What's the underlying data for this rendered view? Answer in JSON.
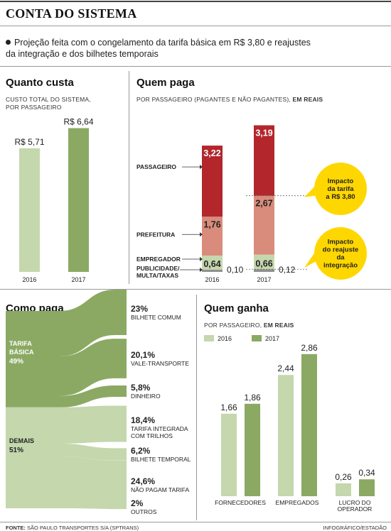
{
  "header": {
    "title": "CONTA DO SISTEMA",
    "subtitle_line1": "Projeção feita com o congelamento da tarifa básica em R$ 3,80 e reajustes",
    "subtitle_line2": "da integração  e dos bilhetes temporais"
  },
  "colors": {
    "y2016": "#c4d7ad",
    "y2017": "#8ba963",
    "passageiro": "#b2262c",
    "prefeitura": "#d98c7c",
    "empregador": "#c4d7ad",
    "publicidade": "#8f8f8f",
    "callout": "#ffd700",
    "sankey_top": "#8ba963",
    "sankey_bottom": "#c4d7ad"
  },
  "quanto_custa": {
    "title": "Quanto custa",
    "label_line1": "CUSTO TOTAL DO SISTEMA,",
    "label_line2": "POR  PASSAGEIRO"
  },
  "quem_paga": {
    "title": "Quem paga",
    "label_main": "POR  PASSAGEIRO (PAGANTES E NÃO PAGANTES),",
    "label_bold": "EM REAIS",
    "row_labels": {
      "passageiro": "PASSAGEIRO",
      "prefeitura": "PREFEITURA",
      "empregador": "EMPREGADOR",
      "publicidade_1": "PUBLICIDADE/",
      "publicidade_2": "MULTA/TAXAS"
    },
    "callout1": [
      "Impacto",
      "da tarifa",
      "a R$ 3,80"
    ],
    "callout2": [
      "Impacto",
      "do reajuste",
      "da",
      "integração"
    ]
  },
  "como_paga": {
    "title": "Como paga",
    "group_top": [
      "TARIFA",
      "BÁSICA",
      "49%"
    ],
    "group_bottom": [
      "DEMAIS",
      "51%"
    ]
  },
  "quem_ganha": {
    "title": "Quem ganha",
    "label_main": "POR  PASSAGEIRO,",
    "label_bold": "EM REAIS"
  },
  "chart_data": [
    {
      "type": "bar",
      "title": "Quanto custa",
      "categories": [
        "2016",
        "2017"
      ],
      "values": [
        5.71,
        6.64
      ],
      "value_labels": [
        "R$ 5,71",
        "R$ 6,64"
      ]
    },
    {
      "type": "bar",
      "stacked": true,
      "title": "Quem paga",
      "categories": [
        "2016",
        "2017"
      ],
      "series": [
        {
          "name": "PASSAGEIRO",
          "values": [
            3.22,
            3.19
          ],
          "labels": [
            "3,22",
            "3,19"
          ]
        },
        {
          "name": "PREFEITURA",
          "values": [
            1.76,
            2.67
          ],
          "labels": [
            "1,76",
            "2,67"
          ]
        },
        {
          "name": "EMPREGADOR",
          "values": [
            0.64,
            0.66
          ],
          "labels": [
            "0,64",
            "0,66"
          ]
        },
        {
          "name": "PUBLICIDADE/MULTA/TAXAS",
          "values": [
            0.1,
            0.12
          ],
          "labels": [
            "0,10",
            "0,12"
          ]
        }
      ]
    },
    {
      "type": "sankey",
      "title": "Como paga",
      "groups": [
        {
          "name": "TARIFA BÁSICA",
          "share": 49
        },
        {
          "name": "DEMAIS",
          "share": 51
        }
      ],
      "flows": [
        {
          "group": 0,
          "pct": 23.0,
          "pct_label": "23%",
          "label": [
            "BILHETE COMUM"
          ]
        },
        {
          "group": 0,
          "pct": 20.1,
          "pct_label": "20,1%",
          "label": [
            "VALE-TRANSPORTE"
          ]
        },
        {
          "group": 0,
          "pct": 5.8,
          "pct_label": "5,8%",
          "label": [
            "DINHEIRO"
          ]
        },
        {
          "group": 1,
          "pct": 18.4,
          "pct_label": "18,4%",
          "label": [
            "TARIFA INTEGRADA",
            "COM TRILHOS"
          ]
        },
        {
          "group": 1,
          "pct": 6.2,
          "pct_label": "6,2%",
          "label": [
            "BILHETE TEMPORAL"
          ]
        },
        {
          "group": 1,
          "pct": 24.6,
          "pct_label": "24,6%",
          "label": [
            "NÃO PAGAM TARIFA"
          ]
        },
        {
          "group": 1,
          "pct": 2.0,
          "pct_label": "2%",
          "label": [
            "OUTROS"
          ]
        }
      ]
    },
    {
      "type": "bar",
      "title": "Quem ganha",
      "legend": [
        "2016",
        "2017"
      ],
      "categories": [
        "FORNECEDORES",
        "EMPREGADOS",
        "LUCRO DO OPERADOR"
      ],
      "category_labels": [
        [
          "FORNECEDORES"
        ],
        [
          "EMPREGADOS"
        ],
        [
          "LUCRO DO",
          "OPERADOR"
        ]
      ],
      "series": [
        {
          "name": "2016",
          "values": [
            1.66,
            2.44,
            0.26
          ],
          "labels": [
            "1,66",
            "2,44",
            "0,26"
          ]
        },
        {
          "name": "2017",
          "values": [
            1.86,
            2.86,
            0.34
          ],
          "labels": [
            "1,86",
            "2,86",
            "0,34"
          ]
        }
      ]
    }
  ],
  "footer": {
    "source_bold": "FONTE:",
    "source": "SÃO PAULO TRANSPORTES S/A (SPTRANS)",
    "credit": "INFOGRÁFICO/ESTADÃO"
  }
}
